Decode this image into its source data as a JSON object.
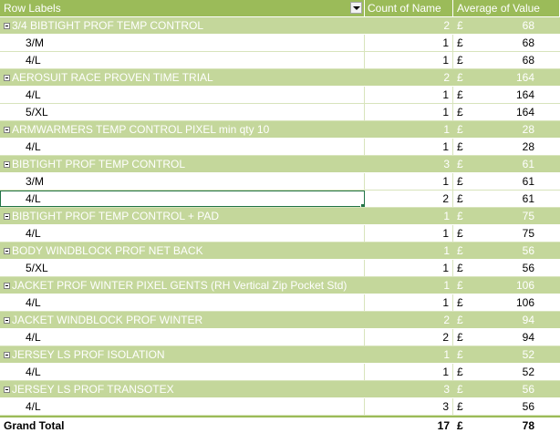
{
  "header": {
    "row_labels": "Row Labels",
    "count_label": "Count of Name",
    "avg_label": "Average of Value"
  },
  "currency": "£",
  "groups": [
    {
      "label": "3/4 BIBTIGHT PROF TEMP CONTROL",
      "count": "2",
      "avg": "68",
      "items": [
        {
          "label": "3/M",
          "count": "1",
          "avg": "68"
        },
        {
          "label": "4/L",
          "count": "1",
          "avg": "68"
        }
      ]
    },
    {
      "label": "AEROSUIT RACE PROVEN TIME TRIAL",
      "count": "2",
      "avg": "164",
      "items": [
        {
          "label": "4/L",
          "count": "1",
          "avg": "164"
        },
        {
          "label": "5/XL",
          "count": "1",
          "avg": "164"
        }
      ]
    },
    {
      "label": "ARMWARMERS TEMP CONTROL PIXEL min qty 10",
      "count": "1",
      "avg": "28",
      "items": [
        {
          "label": "4/L",
          "count": "1",
          "avg": "28"
        }
      ]
    },
    {
      "label": "BIBTIGHT PROF TEMP CONTROL",
      "count": "3",
      "avg": "61",
      "items": [
        {
          "label": "3/M",
          "count": "1",
          "avg": "61"
        },
        {
          "label": "4/L",
          "count": "2",
          "avg": "61"
        }
      ]
    },
    {
      "label": "BIBTIGHT PROF TEMP CONTROL + PAD",
      "count": "1",
      "avg": "75",
      "items": [
        {
          "label": "4/L",
          "count": "1",
          "avg": "75"
        }
      ]
    },
    {
      "label": "BODY WINDBLOCK PROF NET BACK",
      "count": "1",
      "avg": "56",
      "items": [
        {
          "label": "5/XL",
          "count": "1",
          "avg": "56"
        }
      ]
    },
    {
      "label": "JACKET PROF WINTER PIXEL GENTS (RH Vertical Zip Pocket Std)",
      "count": "1",
      "avg": "106",
      "items": [
        {
          "label": "4/L",
          "count": "1",
          "avg": "106"
        }
      ]
    },
    {
      "label": "JACKET WINDBLOCK PROF WINTER",
      "count": "2",
      "avg": "94",
      "items": [
        {
          "label": "4/L",
          "count": "2",
          "avg": "94"
        }
      ]
    },
    {
      "label": "JERSEY LS PROF ISOLATION",
      "count": "1",
      "avg": "52",
      "items": [
        {
          "label": "4/L",
          "count": "1",
          "avg": "52"
        }
      ]
    },
    {
      "label": "JERSEY LS PROF TRANSOTEX",
      "count": "3",
      "avg": "56",
      "items": [
        {
          "label": "4/L",
          "count": "3",
          "avg": "56"
        }
      ]
    }
  ],
  "grand_total": {
    "label": "Grand Total",
    "count": "17",
    "avg": "78"
  },
  "colors": {
    "header": "#9bbb59",
    "group": "#c4d79b",
    "selection": "#217346"
  }
}
